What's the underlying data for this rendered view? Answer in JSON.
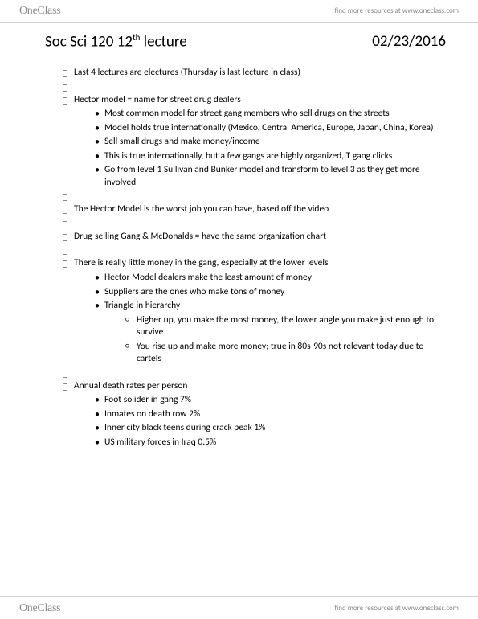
{
  "brand": "OneClass",
  "tagline": "find more resources at www.oneclass.com",
  "title_prefix": "Soc Sci 120 12",
  "title_suffix": " lecture",
  "title_ord": "th",
  "date": "02/23/2016",
  "items": [
    {
      "level": 1,
      "text": "Last 4 lectures are electures (Thursday is last lecture in class)"
    },
    {
      "level": 1,
      "text": ""
    },
    {
      "level": 1,
      "text": "Hector model = name for street drug dealers"
    },
    {
      "level": 2,
      "text": "Most common model for street gang members who sell drugs on the streets"
    },
    {
      "level": 2,
      "text": "Model holds true internationally (Mexico, Central America, Europe, Japan, China, Korea)"
    },
    {
      "level": 2,
      "text": "Sell small drugs and make money/income"
    },
    {
      "level": 2,
      "text": "This is true internationally, but a few gangs are highly organized, T gang clicks"
    },
    {
      "level": 2,
      "text": "Go from level 1 Sullivan and Bunker model and transform to level 3 as they get more involved"
    },
    {
      "level": 1,
      "text": ""
    },
    {
      "level": 1,
      "text": "The Hector Model is the worst job you can have, based off the video"
    },
    {
      "level": 1,
      "text": ""
    },
    {
      "level": 1,
      "text": "Drug-selling Gang & McDonalds = have the same organization chart"
    },
    {
      "level": 1,
      "text": ""
    },
    {
      "level": 1,
      "text": "There is really little money in the gang, especially at the lower levels"
    },
    {
      "level": 2,
      "text": "Hector Model dealers make the least amount of money"
    },
    {
      "level": 2,
      "text": "Suppliers are the ones who make tons of money"
    },
    {
      "level": 2,
      "text": "Triangle in hierarchy"
    },
    {
      "level": 3,
      "text": "Higher up, you make the most money, the lower angle you make just enough to survive"
    },
    {
      "level": 3,
      "text": "You rise up and make more money; true in 80s-90s not relevant today due to cartels"
    },
    {
      "level": 1,
      "text": ""
    },
    {
      "level": 1,
      "text": "Annual death rates per person"
    },
    {
      "level": 2,
      "text": "Foot solider in gang 7%"
    },
    {
      "level": 2,
      "text": "Inmates on death row 2%"
    },
    {
      "level": 2,
      "text": "Inner city black teens during crack peak 1%"
    },
    {
      "level": 2,
      "text": "US military forces in Iraq 0.5%"
    }
  ]
}
